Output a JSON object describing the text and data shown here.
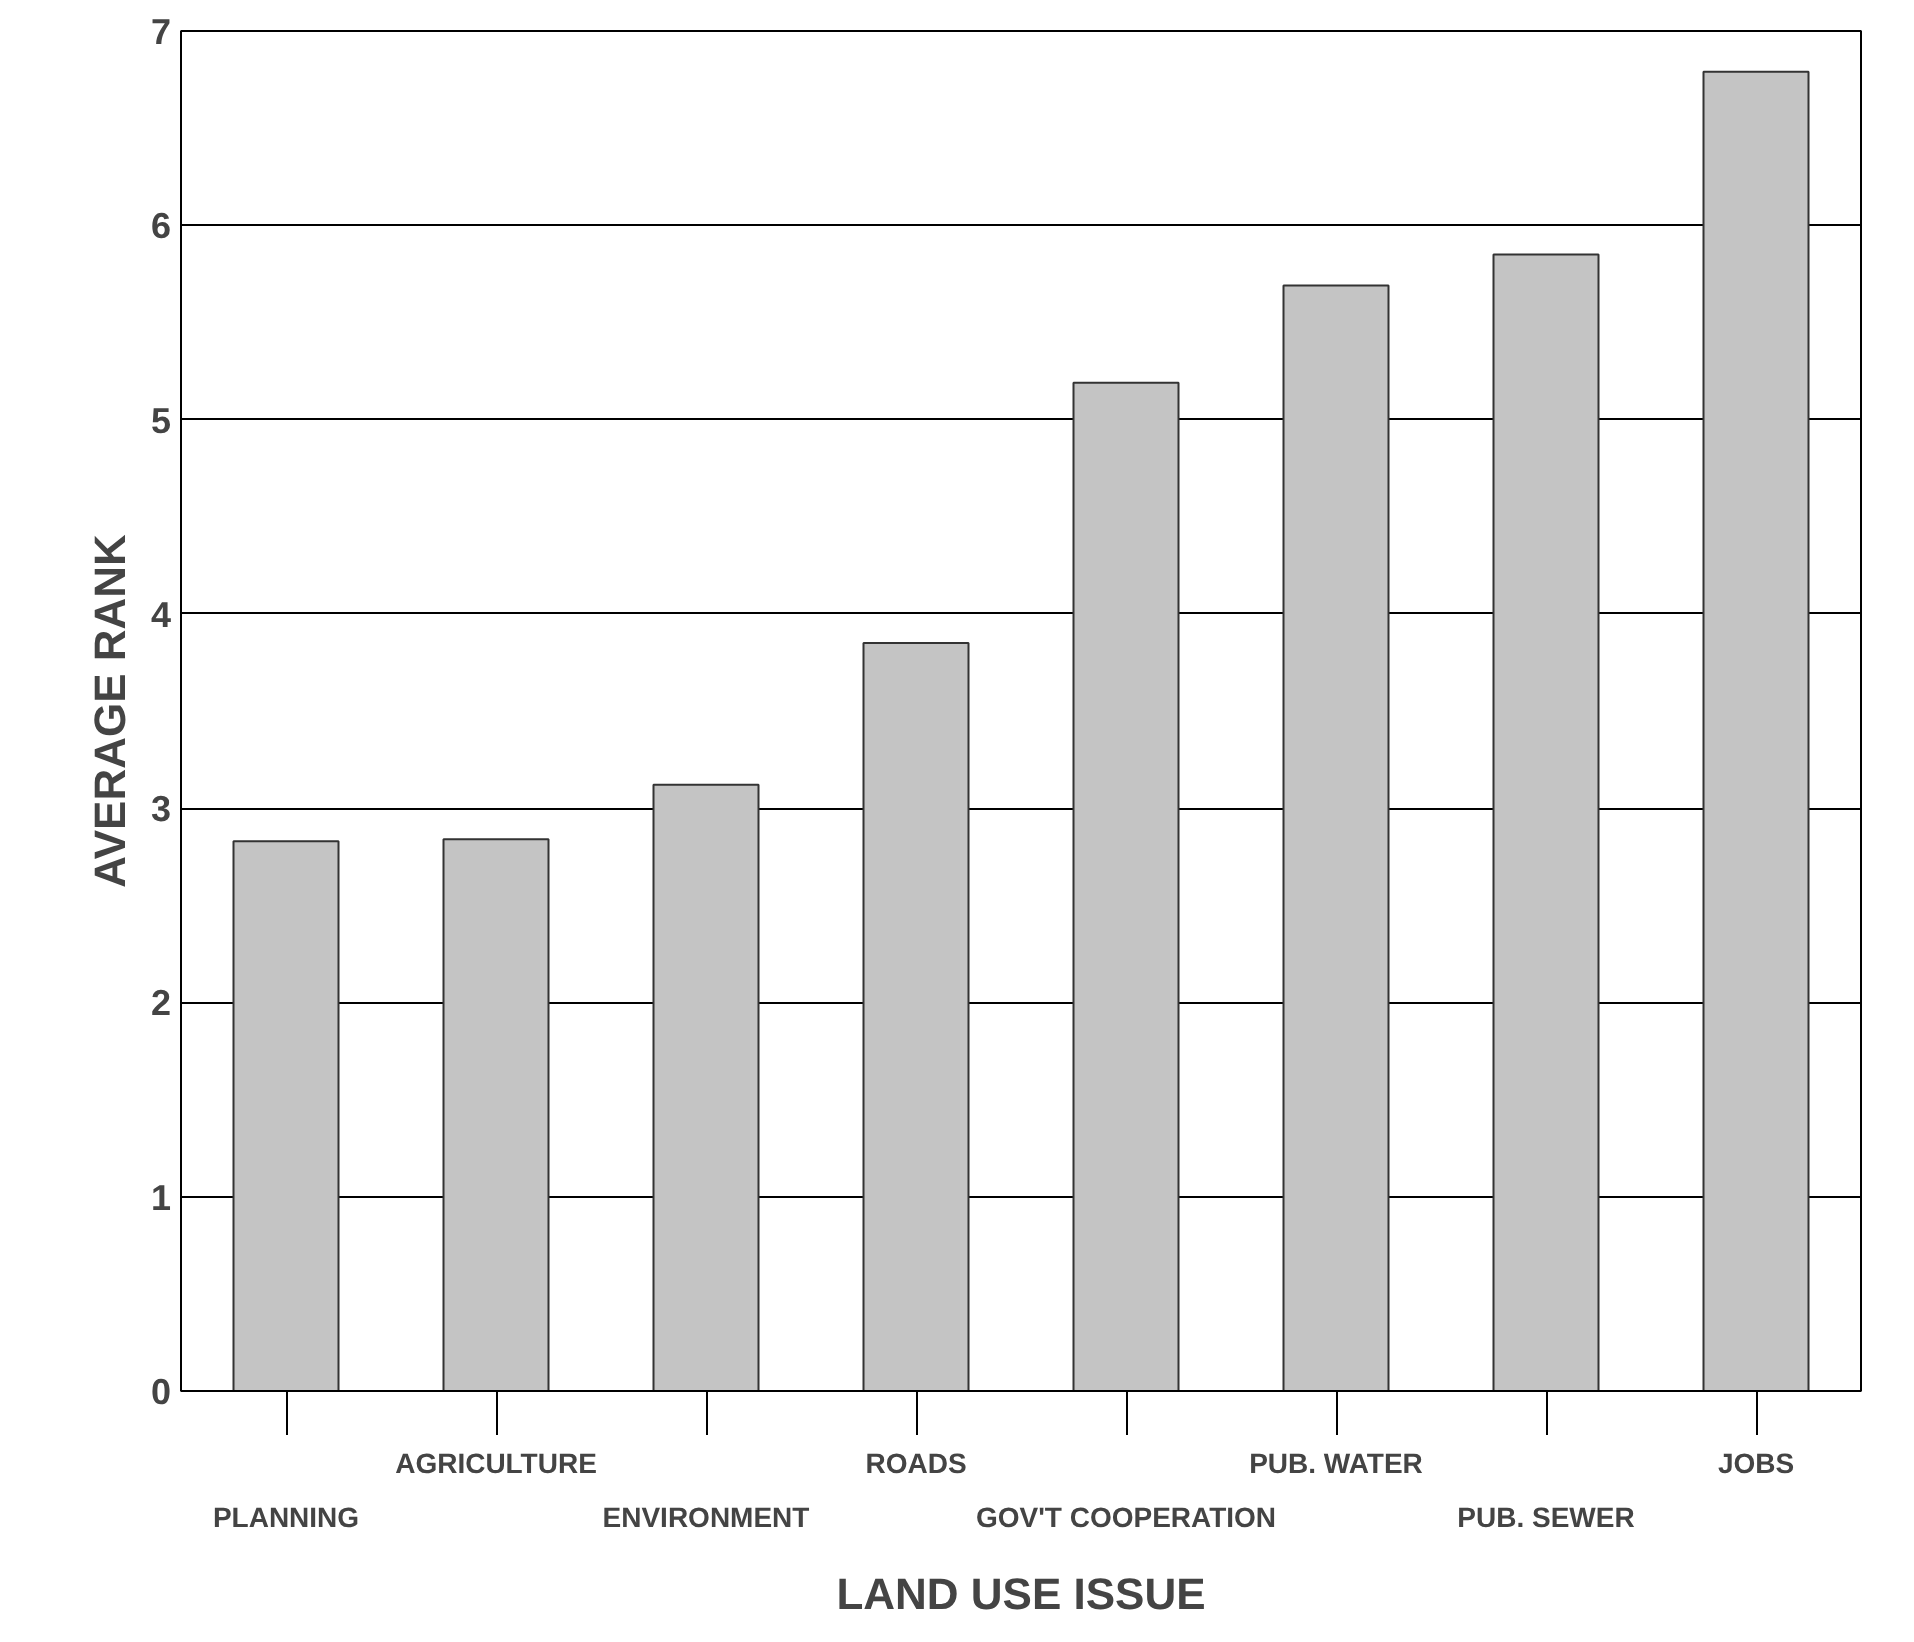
{
  "chart_data": {
    "type": "bar",
    "xlabel": "LAND USE ISSUE",
    "ylabel": "AVERAGE RANK",
    "categories": [
      "PLANNING",
      "AGRICULTURE",
      "ENVIRONMENT",
      "ROADS",
      "GOV'T COOPERATION",
      "PUB. WATER",
      "PUB. SEWER",
      "JOBS"
    ],
    "values": [
      2.83,
      2.84,
      3.12,
      3.85,
      5.19,
      5.69,
      5.85,
      6.79
    ],
    "color": "#c4c4c4",
    "ylim": [
      0,
      7
    ],
    "yticks": [
      0,
      1,
      2,
      3,
      4,
      5,
      6,
      7
    ],
    "grid": "y"
  }
}
